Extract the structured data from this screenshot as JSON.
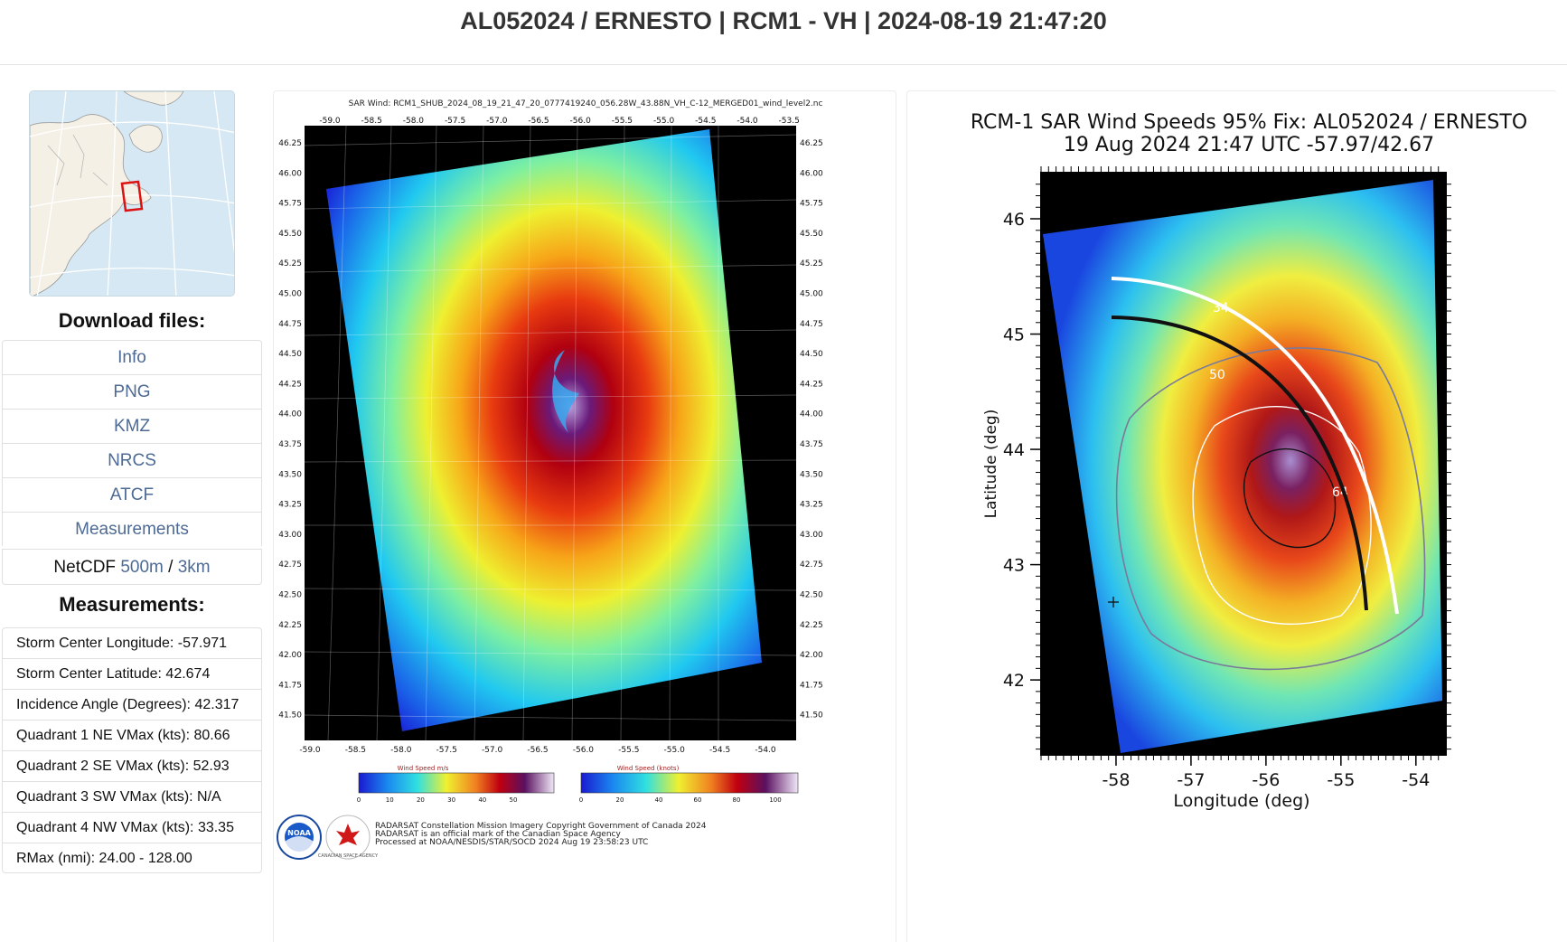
{
  "page": {
    "title": "AL052024 / ERNESTO | RCM1 - VH | 2024-08-19 21:47:20"
  },
  "sidebar": {
    "download_heading": "Download files:",
    "downloads": [
      "Info",
      "PNG",
      "KMZ",
      "NRCS",
      "ATCF",
      "Measurements"
    ],
    "netcdf": {
      "label": "NetCDF",
      "link_500m": "500m",
      "separator": "/",
      "link_3km": "3km"
    },
    "measurements_heading": "Measurements:",
    "measurements": [
      "Storm Center Longitude: -57.971",
      "Storm Center Latitude: 42.674",
      "Incidence Angle (Degrees): 42.317",
      "Quadrant 1 NE VMax (kts): 80.66",
      "Quadrant 2 SE VMax (kts): 52.93",
      "Quadrant 3 SW VMax (kts): N/A",
      "Quadrant 4 NW VMax (kts): 33.35",
      "RMax (nmi): 24.00 - 128.00"
    ]
  },
  "center_image": {
    "header": "SAR Wind: RCM1_SHUB_2024_08_19_21_47_20_0777419240_056.28W_43.88N_VH_C-12_MERGED01_wind_level2.nc",
    "top_lon_ticks": [
      "-59.0",
      "-58.5",
      "-58.0",
      "-57.5",
      "-57.0",
      "-56.5",
      "-56.0",
      "-55.5",
      "-55.0",
      "-54.5",
      "-54.0",
      "-53.5"
    ],
    "bottom_lon_ticks": [
      "-59.0",
      "-58.5",
      "-58.0",
      "-57.5",
      "-57.0",
      "-56.5",
      "-56.0",
      "-55.5",
      "-55.0",
      "-54.5",
      "-54.0"
    ],
    "lat_ticks": [
      "46.25",
      "46.00",
      "45.75",
      "45.50",
      "45.25",
      "45.00",
      "44.75",
      "44.50",
      "44.25",
      "44.00",
      "43.75",
      "43.50",
      "43.25",
      "43.00",
      "42.75",
      "42.50",
      "42.25",
      "42.00",
      "41.75",
      "41.50"
    ],
    "colorbar_ms": {
      "title": "Wind Speed m/s",
      "ticks": [
        "0",
        "10",
        "20",
        "30",
        "40",
        "50"
      ]
    },
    "colorbar_kt": {
      "title": "Wind Speed (knots)",
      "ticks": [
        "0",
        "20",
        "40",
        "60",
        "80",
        "100"
      ]
    },
    "credits": [
      "RADARSAT Constellation Mission Imagery Copyright Government of Canada 2024",
      "RADARSAT is an official mark of the Canadian Space Agency",
      "Processed at NOAA/NESDIS/STAR/SOCD 2024 Aug 19 23:58:23 UTC"
    ],
    "logo_noaa": "NOAA",
    "logo_csa": "CANADIAN SPACE AGENCY"
  },
  "right_chart": {
    "title_line1": "RCM-1 SAR Wind Speeds 95% Fix: AL052024 / ERNESTO",
    "title_line2": "19 Aug 2024 21:47 UTC  -57.97/42.67",
    "xlabel": "Longitude (deg)",
    "ylabel": "Latitude (deg)",
    "x_ticks": [
      "-58",
      "-57",
      "-56",
      "-55",
      "-54"
    ],
    "y_ticks": [
      "46",
      "45",
      "44",
      "43",
      "42"
    ],
    "contour_labels": [
      "34",
      "50",
      "64"
    ]
  },
  "chart_data": {
    "type": "heatmap",
    "title": "RCM-1 SAR Wind Speeds 95% Fix: AL052024 / ERNESTO",
    "subtitle": "19 Aug 2024 21:47 UTC  -57.97/42.67",
    "xlabel": "Longitude (deg)",
    "ylabel": "Latitude (deg)",
    "xlim": [
      -59.0,
      -53.6
    ],
    "ylim": [
      41.35,
      46.4
    ],
    "x_ticks": [
      -58,
      -57,
      -56,
      -55,
      -54
    ],
    "y_ticks": [
      46,
      45,
      44,
      43,
      42
    ],
    "contour_levels_kt": [
      34,
      50,
      64
    ],
    "storm_center": {
      "lon": -57.971,
      "lat": 42.674
    },
    "colors": {
      "low": "#1a2ee0",
      "mid": "#f0e020",
      "high": "#c01010",
      "peak": "#9a78c8"
    }
  }
}
